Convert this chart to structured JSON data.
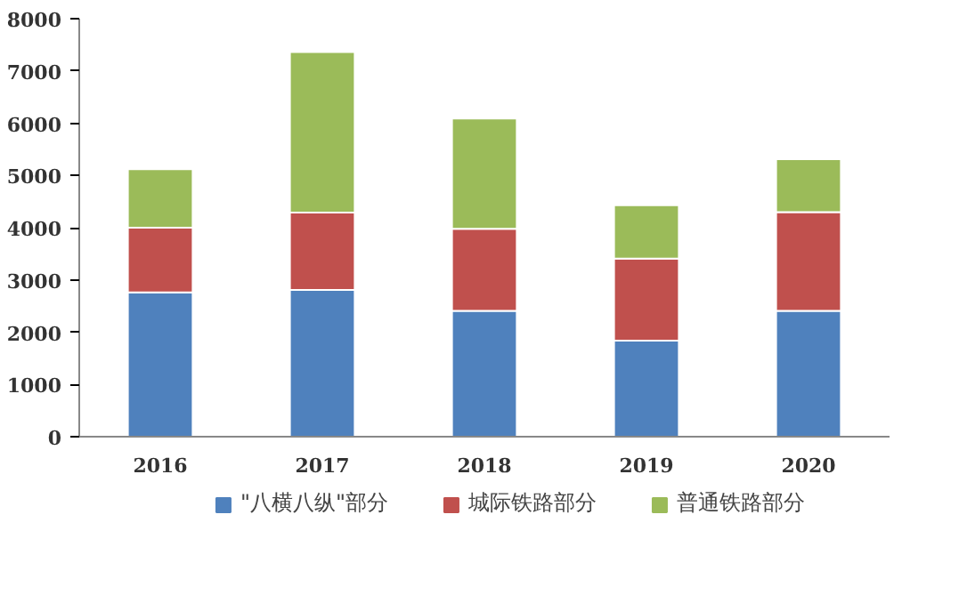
{
  "chart_data": {
    "type": "bar",
    "stacked": true,
    "categories": [
      "2016",
      "2017",
      "2018",
      "2019",
      "2020"
    ],
    "series": [
      {
        "name": "\"八横八纵\"部分",
        "color": "#4f81bd",
        "values": [
          2760,
          2810,
          2410,
          1840,
          2410
        ]
      },
      {
        "name": "城际铁路部分",
        "color": "#c0504d",
        "values": [
          1240,
          1480,
          1570,
          1570,
          1890
        ]
      },
      {
        "name": "普通铁路部分",
        "color": "#9bbb59",
        "values": [
          1120,
          3070,
          2110,
          1020,
          1010
        ]
      }
    ],
    "ylim": [
      0,
      8000
    ],
    "yticks": [
      0,
      1000,
      2000,
      3000,
      4000,
      5000,
      6000,
      7000,
      8000
    ],
    "grid": false,
    "legend": "bottom"
  }
}
